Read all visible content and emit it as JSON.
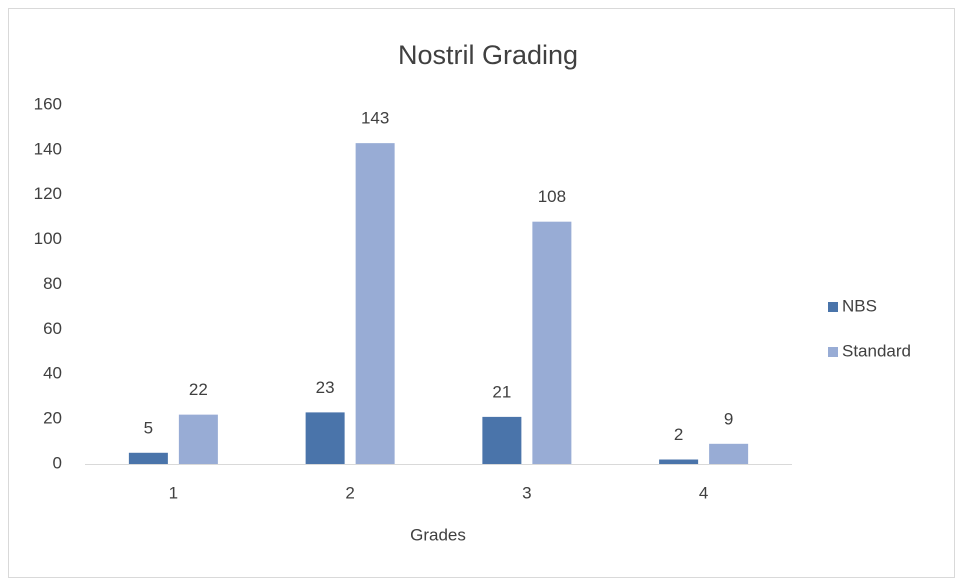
{
  "chart_data": {
    "type": "bar",
    "title": "Nostril Grading",
    "x_label": "Grades",
    "categories": [
      "1",
      "2",
      "3",
      "4"
    ],
    "series": [
      {
        "name": "NBS",
        "color": "#4a74aa",
        "values": [
          5,
          23,
          21,
          2
        ]
      },
      {
        "name": "Standard",
        "color": "#98acd5",
        "values": [
          22,
          143,
          108,
          9
        ]
      }
    ],
    "ylim": [
      0,
      160
    ],
    "yticks": [
      0,
      20,
      40,
      60,
      80,
      100,
      120,
      140,
      160
    ],
    "grid": false,
    "legend": "right",
    "data_labels": true
  }
}
